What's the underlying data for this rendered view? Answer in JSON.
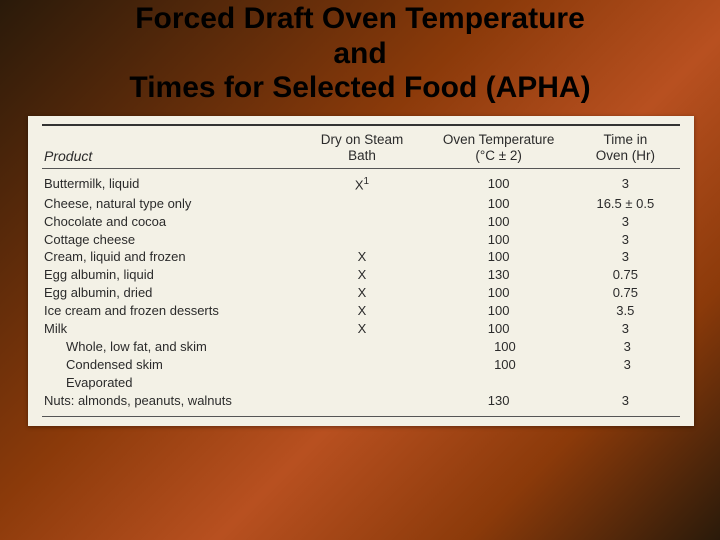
{
  "title_line1": "Forced Draft Oven Temperature",
  "title_line2": "and",
  "title_line3": "Times for Selected Food (APHA)",
  "table": {
    "background_color": "#f3f1e6",
    "text_color": "#2b2b2b",
    "columns": {
      "product": "Product",
      "steam_line1": "Dry on Steam",
      "steam_line2": "Bath",
      "temp_line1": "Oven Temperature",
      "temp_line2": "(°C ± 2)",
      "time_line1": "Time in",
      "time_line2": "Oven (Hr)"
    },
    "rows": [
      {
        "product": "Buttermilk, liquid",
        "steam": "X",
        "steam_sup": "1",
        "temp": "100",
        "time": "3",
        "indent": false
      },
      {
        "product": "Cheese, natural type only",
        "steam": "",
        "steam_sup": "",
        "temp": "100",
        "time": "16.5 ± 0.5",
        "indent": false
      },
      {
        "product": "Chocolate and cocoa",
        "steam": "",
        "steam_sup": "",
        "temp": "100",
        "time": "3",
        "indent": false
      },
      {
        "product": "Cottage cheese",
        "steam": "",
        "steam_sup": "",
        "temp": "100",
        "time": "3",
        "indent": false
      },
      {
        "product": "Cream, liquid and frozen",
        "steam": "X",
        "steam_sup": "",
        "temp": "100",
        "time": "3",
        "indent": false
      },
      {
        "product": "Egg albumin, liquid",
        "steam": "X",
        "steam_sup": "",
        "temp": "130",
        "time": "0.75",
        "indent": false
      },
      {
        "product": "Egg albumin, dried",
        "steam": "X",
        "steam_sup": "",
        "temp": "100",
        "time": "0.75",
        "indent": false
      },
      {
        "product": "Ice cream and frozen desserts",
        "steam": "X",
        "steam_sup": "",
        "temp": "100",
        "time": "3.5",
        "indent": false
      },
      {
        "product": "Milk",
        "steam": "X",
        "steam_sup": "",
        "temp": "100",
        "time": "3",
        "indent": false
      },
      {
        "product": "Whole, low fat, and skim",
        "steam": "",
        "steam_sup": "",
        "temp": "100",
        "time": "3",
        "indent": true
      },
      {
        "product": "Condensed skim",
        "steam": "",
        "steam_sup": "",
        "temp": "100",
        "time": "3",
        "indent": true
      },
      {
        "product": "Evaporated",
        "steam": "",
        "steam_sup": "",
        "temp": "",
        "time": "",
        "indent": true
      },
      {
        "product": "Nuts: almonds, peanuts, walnuts",
        "steam": "",
        "steam_sup": "",
        "temp": "130",
        "time": "3",
        "indent": false
      }
    ]
  }
}
